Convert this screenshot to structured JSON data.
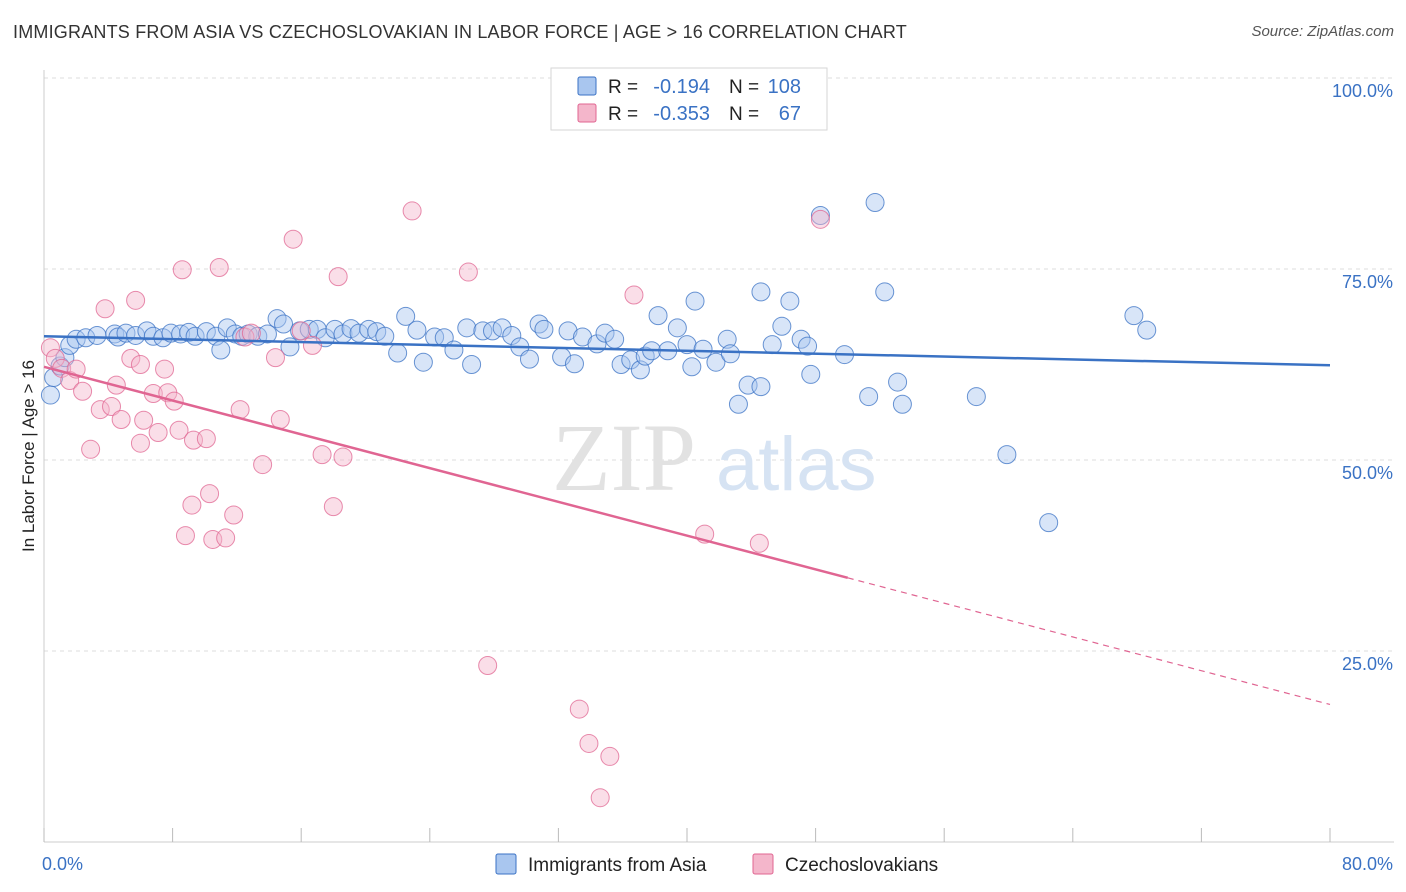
{
  "title": "IMMIGRANTS FROM ASIA VS CZECHOSLOVAKIAN IN LABOR FORCE | AGE > 16 CORRELATION CHART",
  "source": "Source: ZipAtlas.com",
  "colors": {
    "blue": "#3a72c4",
    "blue_fill": "#a9c6ef",
    "pink": "#e06592",
    "pink_fill": "#f4b6cb",
    "grid": "#dddddd"
  },
  "legend": {
    "r_label": "R =",
    "n_label": "N =",
    "rows": [
      {
        "r": "-0.194",
        "n": "108"
      },
      {
        "r": "-0.353",
        "n": "67"
      }
    ]
  },
  "chart_data": {
    "type": "scatter",
    "xlabel": "",
    "ylabel": "In Labor Force | Age > 16",
    "xlim": [
      0,
      80
    ],
    "ylim": [
      0,
      100
    ],
    "x_tick_labels": [
      "0.0%",
      "80.0%"
    ],
    "y_tick_labels": [
      "100.0%",
      "75.0%",
      "50.0%",
      "25.0%"
    ],
    "y_ticks": [
      100,
      75,
      50,
      25
    ],
    "watermark": [
      "ZIP",
      "atlas"
    ],
    "series": [
      {
        "name": "Immigrants from Asia",
        "color": "#3a72c4",
        "trend": {
          "x0": 0,
          "y0": 66.2,
          "x1": 80,
          "y1": 62.4
        },
        "points": [
          [
            0.4,
            58.5
          ],
          [
            0.6,
            60.8
          ],
          [
            1.0,
            62.3
          ],
          [
            1.3,
            63.4
          ],
          [
            1.6,
            65.0
          ],
          [
            2.0,
            65.8
          ],
          [
            2.6,
            66.0
          ],
          [
            3.3,
            66.3
          ],
          [
            4.4,
            66.5
          ],
          [
            4.6,
            66.1
          ],
          [
            5.1,
            66.6
          ],
          [
            5.7,
            66.3
          ],
          [
            6.4,
            66.9
          ],
          [
            6.8,
            66.2
          ],
          [
            7.4,
            66.0
          ],
          [
            7.9,
            66.6
          ],
          [
            8.5,
            66.5
          ],
          [
            9.0,
            66.7
          ],
          [
            9.4,
            66.2
          ],
          [
            10.1,
            66.8
          ],
          [
            10.7,
            66.2
          ],
          [
            11.0,
            64.4
          ],
          [
            11.4,
            67.3
          ],
          [
            11.9,
            66.5
          ],
          [
            12.3,
            66.2
          ],
          [
            12.7,
            66.5
          ],
          [
            13.3,
            66.2
          ],
          [
            13.9,
            66.5
          ],
          [
            14.5,
            68.5
          ],
          [
            14.9,
            67.8
          ],
          [
            15.3,
            64.8
          ],
          [
            15.9,
            66.9
          ],
          [
            16.5,
            67.1
          ],
          [
            17.0,
            67.1
          ],
          [
            17.5,
            66.0
          ],
          [
            18.1,
            67.1
          ],
          [
            18.6,
            66.5
          ],
          [
            19.1,
            67.2
          ],
          [
            19.6,
            66.6
          ],
          [
            20.2,
            67.1
          ],
          [
            20.7,
            66.8
          ],
          [
            21.2,
            66.2
          ],
          [
            22.0,
            64.0
          ],
          [
            22.5,
            68.8
          ],
          [
            23.2,
            67.0
          ],
          [
            23.6,
            62.8
          ],
          [
            24.3,
            66.1
          ],
          [
            24.9,
            66.0
          ],
          [
            25.5,
            64.4
          ],
          [
            26.3,
            67.3
          ],
          [
            26.6,
            62.5
          ],
          [
            27.3,
            66.9
          ],
          [
            27.9,
            66.9
          ],
          [
            28.5,
            67.3
          ],
          [
            29.1,
            66.3
          ],
          [
            29.6,
            64.8
          ],
          [
            30.2,
            63.2
          ],
          [
            30.8,
            67.8
          ],
          [
            31.1,
            67.1
          ],
          [
            32.2,
            63.5
          ],
          [
            32.6,
            66.9
          ],
          [
            33.0,
            62.6
          ],
          [
            33.5,
            66.1
          ],
          [
            34.4,
            65.2
          ],
          [
            34.9,
            66.6
          ],
          [
            35.5,
            65.8
          ],
          [
            35.9,
            62.5
          ],
          [
            36.5,
            63.1
          ],
          [
            37.1,
            61.8
          ],
          [
            37.4,
            63.6
          ],
          [
            37.8,
            64.3
          ],
          [
            38.2,
            68.9
          ],
          [
            38.8,
            64.3
          ],
          [
            39.4,
            67.3
          ],
          [
            40.0,
            65.1
          ],
          [
            40.3,
            62.2
          ],
          [
            40.5,
            70.8
          ],
          [
            41.0,
            64.5
          ],
          [
            41.8,
            62.8
          ],
          [
            42.5,
            65.8
          ],
          [
            42.7,
            63.9
          ],
          [
            43.2,
            57.3
          ],
          [
            43.8,
            59.8
          ],
          [
            44.6,
            59.6
          ],
          [
            44.6,
            72.0
          ],
          [
            45.3,
            65.1
          ],
          [
            45.9,
            67.5
          ],
          [
            46.4,
            70.8
          ],
          [
            47.1,
            65.8
          ],
          [
            47.5,
            64.9
          ],
          [
            47.7,
            61.2
          ],
          [
            48.3,
            82.0
          ],
          [
            49.8,
            63.8
          ],
          [
            51.3,
            58.3
          ],
          [
            51.7,
            83.7
          ],
          [
            52.3,
            72.0
          ],
          [
            53.1,
            60.2
          ],
          [
            53.4,
            57.3
          ],
          [
            58.0,
            58.3
          ],
          [
            59.9,
            50.7
          ],
          [
            62.5,
            41.8
          ],
          [
            67.8,
            68.9
          ],
          [
            68.6,
            67.0
          ]
        ]
      },
      {
        "name": "Czechoslovakians",
        "color": "#e06592",
        "trend": {
          "x0": 0,
          "y0": 62.2,
          "x1": 80,
          "y1": 18.0,
          "solid_until_x": 50
        },
        "points": [
          [
            0.4,
            64.7
          ],
          [
            0.7,
            63.3
          ],
          [
            1.1,
            62.0
          ],
          [
            1.6,
            60.4
          ],
          [
            2.0,
            61.9
          ],
          [
            2.4,
            59.0
          ],
          [
            2.9,
            51.4
          ],
          [
            3.5,
            56.6
          ],
          [
            3.8,
            69.8
          ],
          [
            4.2,
            57.0
          ],
          [
            4.5,
            59.8
          ],
          [
            4.8,
            55.3
          ],
          [
            5.4,
            63.3
          ],
          [
            5.7,
            70.9
          ],
          [
            6.0,
            52.2
          ],
          [
            6.0,
            62.5
          ],
          [
            6.2,
            55.2
          ],
          [
            6.8,
            58.7
          ],
          [
            7.1,
            53.6
          ],
          [
            7.5,
            61.9
          ],
          [
            7.7,
            58.8
          ],
          [
            8.1,
            57.7
          ],
          [
            8.4,
            53.9
          ],
          [
            8.6,
            74.9
          ],
          [
            8.8,
            40.1
          ],
          [
            9.2,
            44.1
          ],
          [
            9.3,
            52.6
          ],
          [
            10.1,
            52.8
          ],
          [
            10.3,
            45.6
          ],
          [
            10.5,
            39.6
          ],
          [
            10.9,
            75.2
          ],
          [
            11.3,
            39.8
          ],
          [
            11.8,
            42.8
          ],
          [
            12.2,
            56.6
          ],
          [
            12.5,
            66.1
          ],
          [
            12.9,
            66.6
          ],
          [
            13.6,
            49.4
          ],
          [
            14.4,
            63.4
          ],
          [
            14.7,
            55.3
          ],
          [
            15.5,
            78.9
          ],
          [
            16.0,
            66.9
          ],
          [
            16.7,
            65.0
          ],
          [
            17.3,
            50.7
          ],
          [
            18.0,
            43.9
          ],
          [
            18.3,
            74.0
          ],
          [
            18.6,
            50.4
          ],
          [
            22.9,
            82.6
          ],
          [
            26.4,
            74.6
          ],
          [
            27.6,
            23.1
          ],
          [
            33.3,
            17.4
          ],
          [
            33.9,
            12.9
          ],
          [
            34.6,
            5.8
          ],
          [
            35.2,
            11.2
          ],
          [
            36.7,
            71.6
          ],
          [
            41.1,
            40.3
          ],
          [
            44.5,
            39.1
          ],
          [
            48.3,
            81.5
          ]
        ]
      }
    ]
  }
}
